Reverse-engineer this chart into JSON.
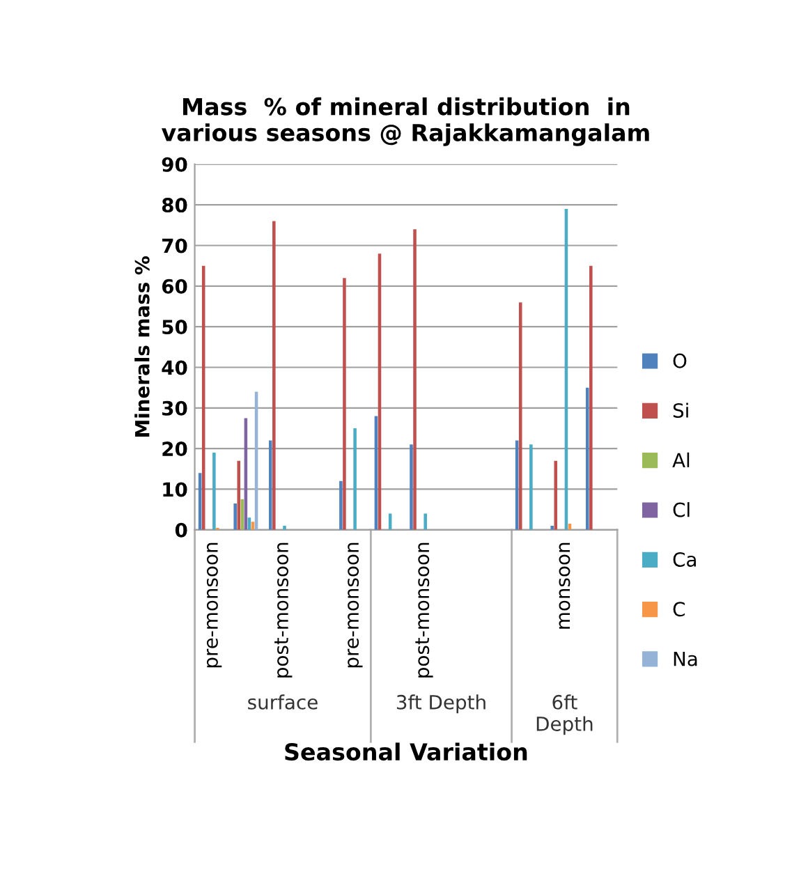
{
  "chart_data": {
    "type": "bar",
    "title": "Mass  % of mineral distribution  in\nvarious seasons @ Rajakkamangalam",
    "xlabel": "Seasonal Variation",
    "ylabel": "Minerals mass %",
    "categories": [
      "pre-monsoon",
      null,
      "post-monsoon",
      null,
      "pre-monsoon",
      null,
      "post-monsoon",
      null,
      null,
      null,
      "monsoon",
      null
    ],
    "series": [
      {
        "name": "O",
        "color": "#4f81bd",
        "values": [
          14,
          6.5,
          22,
          null,
          12,
          28,
          21,
          null,
          null,
          22,
          1,
          35
        ]
      },
      {
        "name": "Si",
        "color": "#c0504d",
        "values": [
          65,
          17,
          76,
          null,
          62,
          68,
          74,
          null,
          null,
          56,
          17,
          65
        ]
      },
      {
        "name": "Al",
        "color": "#9bbb59",
        "values": [
          null,
          7.5,
          null,
          null,
          null,
          null,
          null,
          null,
          null,
          null,
          null,
          null
        ]
      },
      {
        "name": "Cl",
        "color": "#8064a2",
        "values": [
          null,
          27.5,
          null,
          null,
          null,
          null,
          null,
          null,
          null,
          null,
          null,
          null
        ]
      },
      {
        "name": "Ca",
        "color": "#4bacc6",
        "values": [
          19,
          3,
          1,
          null,
          25,
          4,
          4,
          null,
          null,
          21,
          79,
          null
        ]
      },
      {
        "name": "C",
        "color": "#f79646",
        "values": [
          0.5,
          2,
          null,
          null,
          null,
          null,
          null,
          null,
          null,
          null,
          1.5,
          null
        ]
      },
      {
        "name": "Na",
        "color": "#95b3d7",
        "values": [
          null,
          34,
          null,
          null,
          null,
          null,
          null,
          null,
          null,
          null,
          null,
          null
        ]
      }
    ],
    "annotations": [
      "surface",
      "3ft Depth",
      "6ft\nDepth"
    ],
    "ylim": [
      0,
      90
    ],
    "yticks": [
      0,
      10,
      20,
      30,
      40,
      50,
      60,
      70,
      80,
      90
    ],
    "grid": "y",
    "legend": "right"
  }
}
